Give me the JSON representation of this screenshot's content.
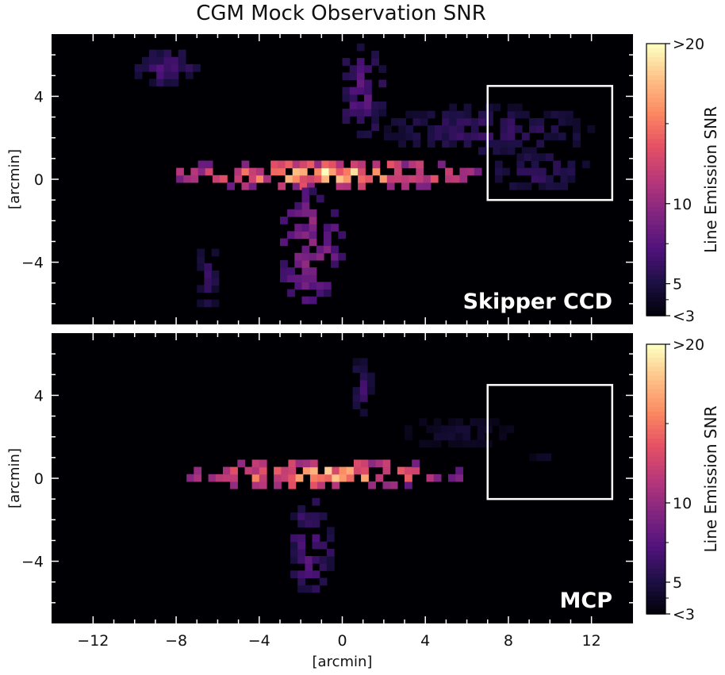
{
  "figure": {
    "title": "CGM Mock Observation SNR"
  },
  "chart_data": [
    {
      "type": "heatmap",
      "panel_label": "Skipper CCD",
      "xlabel": "",
      "ylabel": "[arcmin]",
      "xlim": [
        -14,
        14
      ],
      "ylim": [
        -7,
        7
      ],
      "xticks": [],
      "yticks": [
        "4",
        "0",
        "−4"
      ],
      "ytick_values": [
        4,
        0,
        -4
      ],
      "colorbar": {
        "label": "Line Emission SNR",
        "tick_labels": [
          ">20",
          "10",
          "5",
          "<3"
        ],
        "tick_values": [
          20,
          10,
          5,
          3
        ],
        "colormap": "magma"
      },
      "highlight_box": {
        "x": [
          7,
          13
        ],
        "y": [
          -1,
          4.5
        ]
      },
      "emission_regions": [
        {
          "x": [
            -8,
            6.5
          ],
          "y": [
            -0.5,
            1.0
          ],
          "snr": 20
        },
        {
          "x": [
            -3,
            0
          ],
          "y": [
            -6,
            -0.5
          ],
          "snr": 12
        },
        {
          "x": [
            0,
            2
          ],
          "y": [
            2,
            6.5
          ],
          "snr": 9
        },
        {
          "x": [
            2,
            12
          ],
          "y": [
            1.2,
            3.5
          ],
          "snr": 7
        },
        {
          "x": [
            7,
            12
          ],
          "y": [
            -0.5,
            1.3
          ],
          "snr": 7
        },
        {
          "x": [
            -10,
            -7
          ],
          "y": [
            4.5,
            6.2
          ],
          "snr": 8
        },
        {
          "x": [
            -7,
            -6
          ],
          "y": [
            -6.5,
            -3
          ],
          "snr": 7
        }
      ]
    },
    {
      "type": "heatmap",
      "panel_label": "MCP",
      "xlabel": "[arcmin]",
      "ylabel": "[arcmin]",
      "xlim": [
        -14,
        14
      ],
      "ylim": [
        -7,
        7
      ],
      "xticks": [
        "−12",
        "−8",
        "−4",
        "0",
        "4",
        "8",
        "12"
      ],
      "xtick_values": [
        -12,
        -8,
        -4,
        0,
        4,
        8,
        12
      ],
      "yticks": [
        "4",
        "0",
        "−4"
      ],
      "ytick_values": [
        4,
        0,
        -4
      ],
      "colorbar": {
        "label": "Line Emission SNR",
        "tick_labels": [
          ">20",
          "10",
          "5",
          "<3"
        ],
        "tick_values": [
          20,
          10,
          5,
          3
        ],
        "colormap": "magma"
      },
      "highlight_box": {
        "x": [
          7,
          13
        ],
        "y": [
          -1,
          4.5
        ]
      },
      "emission_regions": [
        {
          "x": [
            -7.5,
            5.5
          ],
          "y": [
            -0.5,
            0.9
          ],
          "snr": 20
        },
        {
          "x": [
            -2.5,
            -0.5
          ],
          "y": [
            -5.5,
            -1
          ],
          "snr": 9
        },
        {
          "x": [
            0.5,
            1.5
          ],
          "y": [
            3,
            6
          ],
          "snr": 7
        },
        {
          "x": [
            3,
            8
          ],
          "y": [
            1.5,
            3
          ],
          "snr": 5
        },
        {
          "x": [
            9,
            11
          ],
          "y": [
            0.5,
            1.2
          ],
          "snr": 5
        }
      ]
    }
  ]
}
